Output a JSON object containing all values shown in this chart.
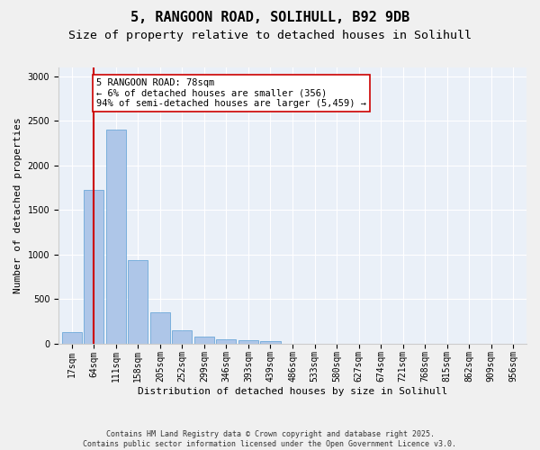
{
  "title_line1": "5, RANGOON ROAD, SOLIHULL, B92 9DB",
  "title_line2": "Size of property relative to detached houses in Solihull",
  "xlabel": "Distribution of detached houses by size in Solihull",
  "ylabel": "Number of detached properties",
  "categories": [
    "17sqm",
    "64sqm",
    "111sqm",
    "158sqm",
    "205sqm",
    "252sqm",
    "299sqm",
    "346sqm",
    "393sqm",
    "439sqm",
    "486sqm",
    "533sqm",
    "580sqm",
    "627sqm",
    "674sqm",
    "721sqm",
    "768sqm",
    "815sqm",
    "862sqm",
    "909sqm",
    "956sqm"
  ],
  "values": [
    130,
    1720,
    2400,
    940,
    350,
    145,
    75,
    50,
    40,
    25,
    0,
    0,
    0,
    0,
    0,
    0,
    0,
    0,
    0,
    0,
    0
  ],
  "bar_color": "#aec6e8",
  "bar_edge_color": "#5a9fd4",
  "vline_x": 1,
  "vline_color": "#cc0000",
  "annotation_text": "5 RANGOON ROAD: 78sqm\n← 6% of detached houses are smaller (356)\n94% of semi-detached houses are larger (5,459) →",
  "annotation_box_color": "#ffffff",
  "annotation_box_edge_color": "#cc0000",
  "ylim": [
    0,
    3100
  ],
  "yticks": [
    0,
    500,
    1000,
    1500,
    2000,
    2500,
    3000
  ],
  "background_color": "#eaf0f8",
  "fig_background_color": "#f0f0f0",
  "footer_text": "Contains HM Land Registry data © Crown copyright and database right 2025.\nContains public sector information licensed under the Open Government Licence v3.0.",
  "title_fontsize": 11,
  "subtitle_fontsize": 9.5,
  "axis_label_fontsize": 8,
  "tick_fontsize": 7,
  "annotation_fontsize": 7.5,
  "footer_fontsize": 6
}
